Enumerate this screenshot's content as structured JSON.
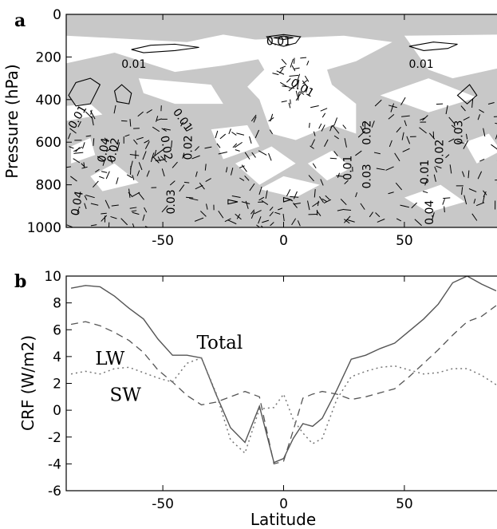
{
  "chart_data": [
    {
      "panel_label": "a",
      "type": "contour",
      "ylabel": "Pressure (hPa)",
      "xlabel": "",
      "xlim": [
        -90,
        90
      ],
      "ylim": [
        1000,
        0
      ],
      "x_ticks": [
        -50,
        0,
        50
      ],
      "y_ticks": [
        0,
        200,
        400,
        600,
        800,
        1000
      ],
      "shading_color": "#c8c8c8",
      "contour_labels": [
        {
          "text": "0.01",
          "x": -62,
          "y": 250,
          "rot": 0
        },
        {
          "text": "0.01",
          "x": -2,
          "y": 145,
          "rot": 0
        },
        {
          "text": "0.01",
          "x": 7,
          "y": 360,
          "rot": 30
        },
        {
          "text": "0.01",
          "x": 57,
          "y": 250,
          "rot": 0
        },
        {
          "text": "0.01",
          "x": -84,
          "y": 490,
          "rot": -60
        },
        {
          "text": "0.04",
          "x": -73,
          "y": 640,
          "rot": -80
        },
        {
          "text": "0.02",
          "x": -69,
          "y": 640,
          "rot": -80
        },
        {
          "text": "0.01",
          "x": -43,
          "y": 505,
          "rot": 55
        },
        {
          "text": "0.02",
          "x": -50,
          "y": 630,
          "rot": 80
        },
        {
          "text": "0.02",
          "x": -38,
          "y": 625,
          "rot": -90
        },
        {
          "text": "0.03",
          "x": -45,
          "y": 880,
          "rot": -90
        },
        {
          "text": "0.04",
          "x": -84,
          "y": 890,
          "rot": -80
        },
        {
          "text": "0.02",
          "x": 36,
          "y": 555,
          "rot": -90
        },
        {
          "text": "0.01",
          "x": 28,
          "y": 720,
          "rot": -90
        },
        {
          "text": "0.03",
          "x": 36,
          "y": 760,
          "rot": -90
        },
        {
          "text": "0.01",
          "x": 60,
          "y": 740,
          "rot": -90
        },
        {
          "text": "0.02",
          "x": 66,
          "y": 645,
          "rot": -90
        },
        {
          "text": "0.03",
          "x": 74,
          "y": 555,
          "rot": -90
        },
        {
          "text": "0.04",
          "x": 62,
          "y": 930,
          "rot": -90
        }
      ]
    },
    {
      "panel_label": "b",
      "type": "line",
      "ylabel": "CRF (W/m2)",
      "xlabel": "Latitude",
      "xlim": [
        -90,
        90
      ],
      "ylim": [
        -6,
        10
      ],
      "x_ticks": [
        -50,
        0,
        50
      ],
      "y_ticks": [
        -6,
        -4,
        -2,
        0,
        2,
        4,
        6,
        8,
        10
      ],
      "x": [
        -88,
        -82,
        -76,
        -70,
        -64,
        -58,
        -52,
        -46,
        -40,
        -34,
        -28,
        -22,
        -16,
        -10,
        -4,
        0,
        4,
        8,
        12,
        16,
        22,
        28,
        34,
        40,
        46,
        52,
        58,
        64,
        70,
        76,
        82,
        88
      ],
      "series": [
        {
          "name": "Total",
          "style": "solid",
          "values": [
            9.1,
            9.3,
            9.2,
            8.5,
            7.6,
            6.8,
            5.3,
            4.1,
            4.1,
            3.9,
            1.2,
            -1.3,
            -2.4,
            0.3,
            -3.9,
            -3.6,
            -2.1,
            -1.0,
            -1.2,
            -0.6,
            1.5,
            3.8,
            4.1,
            4.6,
            5.0,
            5.9,
            6.8,
            7.9,
            9.5,
            10.0,
            9.4,
            8.9
          ]
        },
        {
          "name": "LW",
          "style": "dashed",
          "values": [
            6.4,
            6.6,
            6.3,
            5.8,
            5.2,
            4.3,
            3.0,
            2.1,
            1.1,
            0.4,
            0.6,
            1.0,
            1.4,
            1.0,
            -4.0,
            -3.8,
            -1.5,
            0.9,
            1.2,
            1.4,
            1.2,
            0.8,
            1.0,
            1.3,
            1.6,
            2.5,
            3.5,
            4.5,
            5.6,
            6.6,
            7.0,
            7.8
          ]
        },
        {
          "name": "SW",
          "style": "dotted",
          "values": [
            2.7,
            2.9,
            2.7,
            3.1,
            3.2,
            2.8,
            2.4,
            2.1,
            3.5,
            3.9,
            1.3,
            -2.2,
            -3.2,
            0.1,
            0.2,
            1.2,
            -0.7,
            -1.7,
            -2.5,
            -2.1,
            0.8,
            2.5,
            2.9,
            3.2,
            3.3,
            3.0,
            2.7,
            2.8,
            3.1,
            3.1,
            2.6,
            1.9
          ]
        }
      ],
      "series_labels": [
        {
          "text": "Total",
          "x": -36,
          "y": 4.6
        },
        {
          "text": "LW",
          "x": -78,
          "y": 3.4
        },
        {
          "text": "SW",
          "x": -72,
          "y": 0.7
        }
      ]
    }
  ]
}
